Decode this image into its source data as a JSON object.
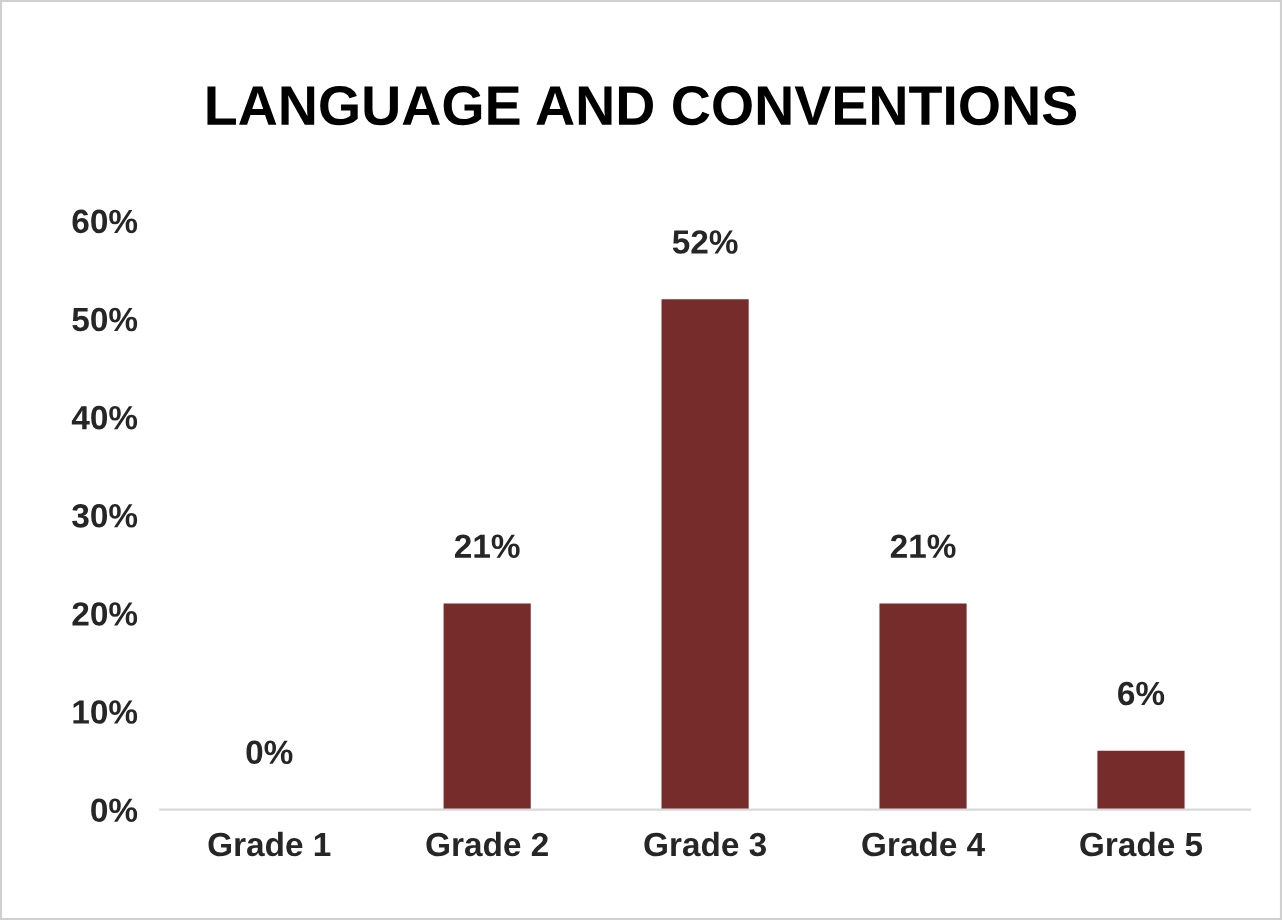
{
  "chart_data": {
    "type": "bar",
    "title": "LANGUAGE AND CONVENTIONS",
    "categories": [
      "Grade 1",
      "Grade 2",
      "Grade 3",
      "Grade 4",
      "Grade 5"
    ],
    "values": [
      0,
      21,
      52,
      21,
      6
    ],
    "value_labels": [
      "0%",
      "21%",
      "52%",
      "21%",
      "6%"
    ],
    "color": "#772c2c",
    "ylim": [
      0,
      60
    ],
    "yticks": [
      {
        "value": 0,
        "label": "0%"
      },
      {
        "value": 10,
        "label": "10%"
      },
      {
        "value": 20,
        "label": "20%"
      },
      {
        "value": 30,
        "label": "30%"
      },
      {
        "value": 40,
        "label": "40%"
      },
      {
        "value": 50,
        "label": "50%"
      },
      {
        "value": 60,
        "label": "60%"
      }
    ],
    "grid": false,
    "legend": false
  }
}
